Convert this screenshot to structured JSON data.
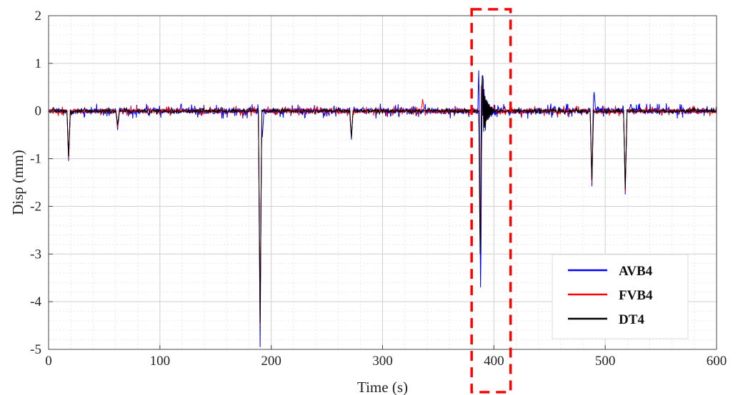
{
  "chart_data": {
    "type": "line",
    "title": "",
    "xlabel": "Time (s)",
    "ylabel": "Disp (mm)",
    "xlim": [
      0,
      600
    ],
    "ylim": [
      -5,
      2
    ],
    "xticks": [
      0,
      100,
      200,
      300,
      400,
      500,
      600
    ],
    "yticks": [
      2,
      1,
      0,
      -1,
      -2,
      -3,
      -4,
      -5
    ],
    "grid": true,
    "minor_grid": true,
    "legend_position": "bottom-right",
    "highlight": {
      "x_range": [
        380,
        415
      ],
      "color": "#ff0000",
      "style": "dashed"
    },
    "series": [
      {
        "name": "AVB4",
        "color": "#0000ff",
        "baseline_noise": 0.1,
        "spikes": [
          [
            18,
            -1.05
          ],
          [
            62,
            -0.4
          ],
          [
            190,
            -4.95
          ],
          [
            192,
            -0.55
          ],
          [
            272,
            -0.6
          ],
          [
            387,
            1.45
          ],
          [
            388,
            -3.7
          ],
          [
            390,
            0.75
          ],
          [
            488,
            -1.58
          ],
          [
            490,
            0.4
          ],
          [
            518,
            -1.75
          ],
          [
            523,
            0.15
          ]
        ]
      },
      {
        "name": "FVB4",
        "color": "#ff0000",
        "baseline_noise": 0.07,
        "spikes": [
          [
            18,
            -1.0
          ],
          [
            62,
            -0.35
          ],
          [
            190,
            -4.5
          ],
          [
            272,
            -0.55
          ],
          [
            336,
            0.25
          ],
          [
            388,
            -4.0
          ],
          [
            389,
            0.7
          ],
          [
            488,
            -1.5
          ],
          [
            518,
            -1.7
          ]
        ]
      },
      {
        "name": "DT4",
        "color": "#000000",
        "baseline_noise": 0.05,
        "spikes": [
          [
            18,
            -0.95
          ],
          [
            62,
            -0.3
          ],
          [
            190,
            -4.45
          ],
          [
            272,
            -0.55
          ],
          [
            388,
            -4.45
          ],
          [
            389,
            0.85
          ],
          [
            488,
            -1.45
          ],
          [
            518,
            -1.65
          ]
        ]
      }
    ]
  }
}
